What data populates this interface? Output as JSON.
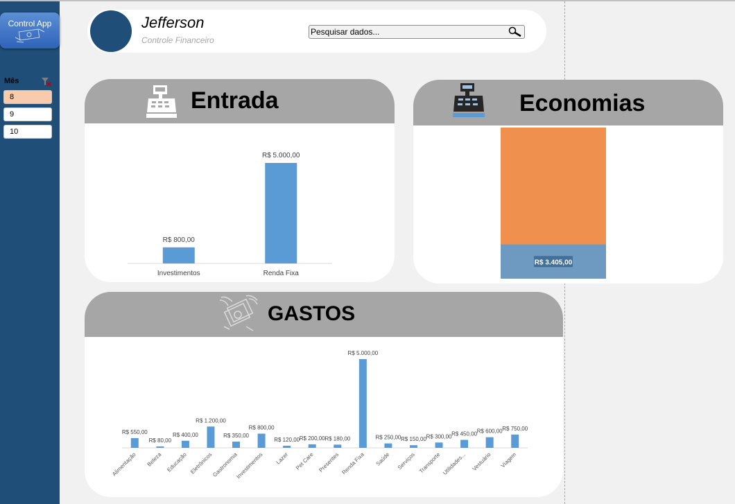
{
  "app": {
    "button_label": "Control App"
  },
  "slicer": {
    "title": "Mês",
    "items": [
      "8",
      "9",
      "10"
    ],
    "selected": "8"
  },
  "header": {
    "user_name": "Jefferson",
    "subtitle": "Controle Financeiro",
    "search_placeholder": "Pesquisar dados..."
  },
  "colors": {
    "sidebar": "#1f4e79",
    "bar": "#5b9bd5",
    "orange": "#f0904f",
    "panel_header": "#a6a6a6",
    "selected_item": "#f8cbad"
  },
  "entrada": {
    "title": "Entrada",
    "icon": "cash-register-icon",
    "chart_data": {
      "type": "bar",
      "categories": [
        "Investimentos",
        "Renda Fixa"
      ],
      "values": [
        800,
        5000
      ],
      "data_labels": [
        "R$ 800,00",
        "R$ 5.000,00"
      ],
      "ylim": [
        0,
        5000
      ]
    }
  },
  "economias": {
    "title": "Economias",
    "icon": "cash-register-icon",
    "chart_data": {
      "type": "bar",
      "stacked": true,
      "series": [
        {
          "values": [
            3405
          ],
          "data_label": "R$ 3.405,00",
          "color": "#6e9ac2"
        },
        {
          "values": [
            11595
          ],
          "color": "#f0904f"
        }
      ],
      "ylim": [
        0,
        15000
      ]
    }
  },
  "gastos": {
    "title": "GASTOS",
    "icon": "flying-money-icon",
    "chart_data": {
      "type": "bar",
      "categories": [
        "Alimentação",
        "Beleza",
        "Educação",
        "Eletrônicos",
        "Gastronomia",
        "Investimentos",
        "Lazer",
        "Pet Care",
        "Presentes",
        "Renda Fixa",
        "Saúde",
        "Serviços",
        "Transporte",
        "Utilidades...",
        "Vestuário",
        "Viagem"
      ],
      "values": [
        550,
        80,
        400,
        1200,
        350,
        800,
        120,
        200,
        180,
        5000,
        250,
        150,
        300,
        450,
        600,
        750
      ],
      "data_labels": [
        "R$ 550,00",
        "R$ 80,00",
        "R$ 400,00",
        "R$ 1.200,00",
        "R$ 350,00",
        "R$ 800,00",
        "R$ 120,00",
        "R$ 200,00",
        "R$ 180,00",
        "R$ 5.000,00",
        "R$ 250,00",
        "R$ 150,00",
        "R$ 300,00",
        "R$ 450,00",
        "R$ 600,00",
        "R$ 750,00"
      ],
      "ylim": [
        0,
        5000
      ]
    }
  }
}
